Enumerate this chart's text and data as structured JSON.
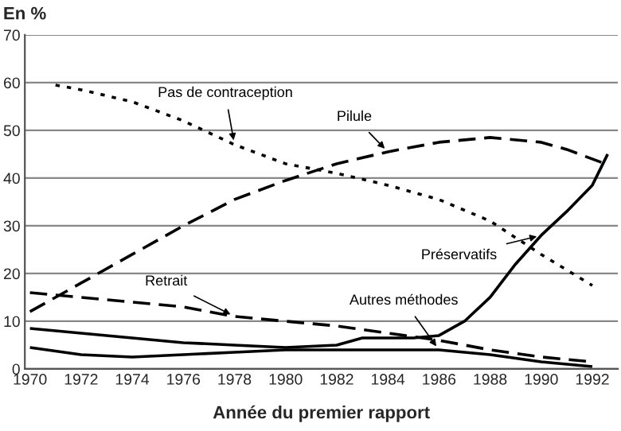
{
  "chart_data": {
    "type": "line",
    "ylabel": "En %",
    "xlabel": "Année du premier rapport",
    "xlim": [
      1969.8,
      1993
    ],
    "ylim": [
      0,
      70
    ],
    "xticks": [
      1970,
      1972,
      1974,
      1976,
      1978,
      1980,
      1982,
      1984,
      1986,
      1988,
      1990,
      1992
    ],
    "yticks": [
      0,
      10,
      20,
      30,
      40,
      50,
      60,
      70
    ],
    "grid": "y",
    "legend": false,
    "series": [
      {
        "name": "Pas de contraception",
        "color": "#000000",
        "line_style": "dotted",
        "x": [
          1971,
          1972,
          1974,
          1976,
          1978,
          1980,
          1982,
          1984,
          1986,
          1988,
          1990,
          1992
        ],
        "values": [
          59.5,
          58.5,
          56,
          52,
          47,
          43,
          41,
          38.5,
          35.5,
          31,
          24,
          17.5
        ]
      },
      {
        "name": "Pilule",
        "color": "#000000",
        "line_style": "dashed",
        "x": [
          1970,
          1972,
          1974,
          1976,
          1978,
          1980,
          1982,
          1984,
          1986,
          1988,
          1990,
          1991,
          1992.5
        ],
        "values": [
          12,
          18,
          24,
          30,
          35.5,
          39.5,
          43,
          45.5,
          47.5,
          48.5,
          47.5,
          46,
          43
        ]
      },
      {
        "name": "Préservatifs",
        "color": "#000000",
        "line_style": "solid",
        "x": [
          1970,
          1972,
          1974,
          1976,
          1978,
          1980,
          1982,
          1983,
          1985,
          1986,
          1987,
          1988,
          1989,
          1990,
          1991,
          1992,
          1992.6
        ],
        "values": [
          8.5,
          7.5,
          6.5,
          5.5,
          5,
          4.5,
          5,
          6.5,
          6.5,
          7,
          10,
          15,
          22,
          28,
          33,
          38.5,
          45
        ]
      },
      {
        "name": "Retrait",
        "color": "#000000",
        "line_style": "dashed",
        "x": [
          1970,
          1972,
          1974,
          1976,
          1978,
          1980,
          1982,
          1984,
          1986,
          1988,
          1990,
          1992
        ],
        "values": [
          16,
          15,
          14,
          13,
          11,
          10,
          9,
          7.5,
          6,
          4,
          2.5,
          1.5
        ]
      },
      {
        "name": "Autres méthodes",
        "color": "#000000",
        "line_style": "solid",
        "x": [
          1970,
          1972,
          1974,
          1976,
          1978,
          1980,
          1982,
          1984,
          1986,
          1988,
          1990,
          1992
        ],
        "values": [
          4.5,
          3,
          2.5,
          3,
          3.5,
          4,
          4,
          4,
          4,
          3,
          1.5,
          0.5
        ]
      }
    ]
  }
}
